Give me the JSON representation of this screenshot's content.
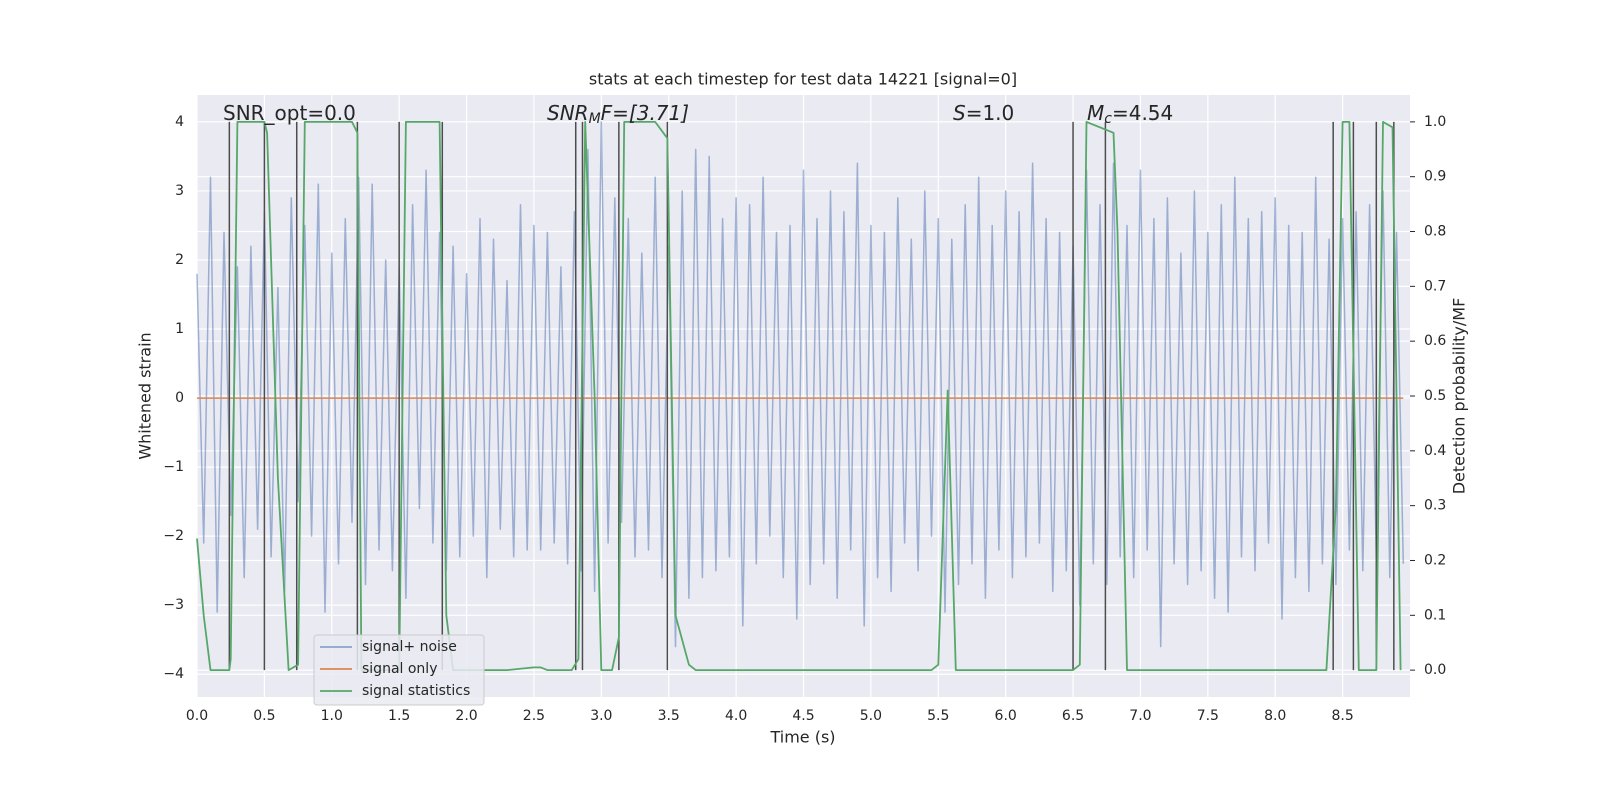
{
  "chart_data": {
    "type": "line",
    "title": "stats at each timestep for test data 14221 [signal=0]",
    "xlabel": "Time (s)",
    "ylabel": "Whitened strain",
    "y2label": "Detection probability/MF",
    "xlim": [
      0,
      9.0
    ],
    "ylim": [
      -4.33,
      4.39
    ],
    "y2lim": [
      -0.049,
      1.049
    ],
    "xticks": [
      {
        "value": 0,
        "label": "0.0"
      },
      0.5,
      {
        "value": 1,
        "label": "1.0"
      },
      1.5,
      {
        "value": 2,
        "label": "2.0"
      },
      2.5,
      {
        "value": 3,
        "label": "3.0"
      },
      3.5,
      {
        "value": 4,
        "label": "4.0"
      },
      4.5,
      {
        "value": 5,
        "label": "5.0"
      },
      5.5,
      {
        "value": 6,
        "label": "6.0"
      },
      6.5,
      {
        "value": 7,
        "label": "7.0"
      },
      7.5,
      {
        "value": 8,
        "label": "8.0"
      },
      8.5
    ],
    "yticks": [
      {
        "value": -4,
        "label": "−4"
      },
      {
        "value": -3,
        "label": "−3"
      },
      {
        "value": -2,
        "label": "−2"
      },
      {
        "value": -1,
        "label": "−1"
      },
      0,
      1,
      2,
      3,
      4
    ],
    "y2ticks": [
      {
        "value": 0,
        "label": "0.0"
      },
      0.1,
      0.2,
      0.3,
      0.4,
      0.5,
      0.6,
      0.7,
      0.8,
      0.9,
      {
        "value": 1,
        "label": "1.0"
      }
    ],
    "grid": true,
    "legend": "lower left",
    "annotations": [
      {
        "main": "SNR_opt=0.0"
      },
      {
        "main": "SNR",
        "sub": "M",
        "rest": "F=[3.71]"
      },
      {
        "main": "S",
        "rest": "=1.0"
      },
      {
        "main": "M",
        "sub": "c",
        "rest": "=4.54"
      }
    ],
    "vlines": {
      "color": "#4d4d4d",
      "range": [
        0,
        1
      ],
      "x": [
        0.24,
        0.5,
        0.74,
        1.19,
        1.5,
        1.82,
        2.81,
        2.86,
        3.13,
        3.49,
        6.5,
        6.74,
        8.43,
        8.58,
        8.75,
        8.88
      ]
    },
    "series": [
      {
        "name": "signal+ noise",
        "color": "#4c72b0",
        "x": [
          0,
          0.05,
          0.1,
          0.15,
          0.2,
          0.25,
          0.3,
          0.35,
          0.4,
          0.45,
          0.5,
          0.55,
          0.6,
          0.65,
          0.7,
          0.75,
          0.8,
          0.85,
          0.9,
          0.95,
          1,
          1.05,
          1.1,
          1.15,
          1.2,
          1.25,
          1.3,
          1.35,
          1.4,
          1.45,
          1.5,
          1.55,
          1.6,
          1.65,
          1.7,
          1.75,
          1.8,
          1.85,
          1.9,
          1.95,
          2,
          2.05,
          2.1,
          2.15,
          2.2,
          2.25,
          2.3,
          2.35,
          2.4,
          2.45,
          2.5,
          2.55,
          2.6,
          2.65,
          2.7,
          2.75,
          2.8,
          2.85,
          2.9,
          2.95,
          3,
          3.05,
          3.1,
          3.15,
          3.2,
          3.25,
          3.3,
          3.35,
          3.4,
          3.45,
          3.5,
          3.55,
          3.6,
          3.65,
          3.7,
          3.75,
          3.8,
          3.85,
          3.9,
          3.95,
          4,
          4.05,
          4.1,
          4.15,
          4.2,
          4.25,
          4.3,
          4.35,
          4.4,
          4.45,
          4.5,
          4.55,
          4.6,
          4.65,
          4.7,
          4.75,
          4.8,
          4.85,
          4.9,
          4.95,
          5,
          5.05,
          5.1,
          5.15,
          5.2,
          5.25,
          5.3,
          5.35,
          5.4,
          5.45,
          5.5,
          5.55,
          5.6,
          5.65,
          5.7,
          5.75,
          5.8,
          5.85,
          5.9,
          5.95,
          6,
          6.05,
          6.1,
          6.15,
          6.2,
          6.25,
          6.3,
          6.35,
          6.4,
          6.45,
          6.5,
          6.55,
          6.6,
          6.65,
          6.7,
          6.75,
          6.8,
          6.85,
          6.9,
          6.95,
          7,
          7.05,
          7.1,
          7.15,
          7.2,
          7.25,
          7.3,
          7.35,
          7.4,
          7.45,
          7.5,
          7.55,
          7.6,
          7.65,
          7.7,
          7.75,
          7.8,
          7.85,
          7.9,
          7.95,
          8,
          8.05,
          8.1,
          8.15,
          8.2,
          8.25,
          8.3,
          8.35,
          8.4,
          8.45,
          8.5,
          8.55,
          8.6,
          8.65,
          8.7,
          8.75,
          8.8,
          8.85,
          8.9,
          8.95
        ],
        "values": [
          1.8,
          -2.1,
          3.2,
          -3.1,
          2.4,
          -1.7,
          1.9,
          -2.6,
          2.2,
          -1.9,
          2.7,
          -2.3,
          1.6,
          -2.8,
          2.9,
          -1.5,
          2.5,
          -2.0,
          3.1,
          -3.1,
          2.1,
          -2.4,
          2.6,
          -1.8,
          3.2,
          -2.7,
          3.1,
          -2.2,
          2.0,
          -2.5,
          1.9,
          -2.9,
          2.8,
          -1.6,
          3.3,
          -2.1,
          2.4,
          -2.5,
          2.2,
          -2.3,
          1.8,
          -2.0,
          2.6,
          -2.6,
          2.3,
          -1.9,
          1.7,
          -2.3,
          2.8,
          -2.2,
          2.5,
          -2.2,
          2.4,
          -2.1,
          1.9,
          -2.4,
          2.7,
          -2.5,
          3.6,
          -2.8,
          4.0,
          -2.1,
          2.9,
          -1.8,
          2.6,
          -2.3,
          2.1,
          -2.2,
          3.2,
          -2.6,
          2.2,
          -3.6,
          3.0,
          -2.9,
          3.6,
          -2.6,
          3.5,
          -2.5,
          2.6,
          -2.3,
          2.9,
          -3.3,
          2.8,
          -2.4,
          3.2,
          -2.0,
          2.4,
          -2.6,
          2.5,
          -3.2,
          3.3,
          -2.7,
          2.6,
          -2.4,
          3.0,
          -2.9,
          2.7,
          -2.2,
          3.4,
          -3.3,
          2.5,
          -2.6,
          2.4,
          -2.8,
          2.9,
          -2.1,
          2.3,
          -2.5,
          3.0,
          -2.0,
          2.6,
          -3.1,
          2.3,
          -2.7,
          2.8,
          -2.4,
          3.2,
          -2.9,
          2.5,
          -2.2,
          3.0,
          -2.6,
          2.7,
          -2.3,
          3.4,
          -2.1,
          2.6,
          -2.8,
          2.4,
          -2.5,
          2.2,
          -3.0,
          3.3,
          -2.4,
          2.8,
          -2.7,
          3.4,
          -2.3,
          2.5,
          -2.6,
          3.3,
          -2.2,
          2.6,
          -3.6,
          2.9,
          -2.4,
          2.1,
          -2.7,
          3.0,
          -2.5,
          2.4,
          -2.9,
          2.8,
          -3.1,
          3.2,
          -2.3,
          2.6,
          -2.5,
          2.7,
          -2.1,
          2.9,
          -3.2,
          2.5,
          -2.6,
          2.4,
          -2.8,
          3.2,
          -2.4,
          2.3,
          -2.7,
          2.6,
          -2.2,
          2.7,
          -2.5,
          2.8,
          -2.3,
          3.0,
          -2.6,
          2.4,
          -2.4
        ]
      },
      {
        "name": "signal only",
        "color": "#dd8452",
        "x": [
          0,
          8.95
        ],
        "values": [
          0,
          0
        ]
      },
      {
        "name": "signal statistics",
        "color": "#55a868",
        "axis": "y2",
        "x": [
          0,
          0.05,
          0.1,
          0.24,
          0.25,
          0.3,
          0.5,
          0.52,
          0.6,
          0.68,
          0.75,
          0.8,
          1.0,
          1.15,
          1.19,
          1.22,
          1.5,
          1.55,
          1.8,
          1.85,
          1.9,
          2.3,
          2.5,
          2.55,
          2.6,
          2.78,
          2.83,
          2.88,
          2.95,
          3.0,
          3.08,
          3.13,
          3.17,
          3.4,
          3.49,
          3.55,
          3.65,
          3.7,
          5.45,
          5.5,
          5.57,
          5.63,
          6.5,
          6.55,
          6.6,
          6.8,
          6.83,
          6.9,
          8.38,
          8.45,
          8.5,
          8.55,
          8.62,
          8.75,
          8.8,
          8.87,
          8.93
        ],
        "values": [
          0.24,
          0.1,
          0,
          0,
          0.02,
          1,
          1,
          0.98,
          0.35,
          0,
          0.01,
          1,
          1,
          1,
          0.98,
          0,
          0,
          1,
          1,
          0.1,
          0,
          0,
          0.005,
          0.005,
          0,
          0,
          0.02,
          1,
          0.5,
          0,
          0,
          0.06,
          1,
          1,
          0.97,
          0.1,
          0.01,
          0,
          0,
          0.01,
          0.51,
          0,
          0,
          0.01,
          1,
          0.98,
          0.8,
          0,
          0,
          0.3,
          1,
          1,
          0,
          0,
          1,
          0.99,
          0
        ]
      }
    ]
  }
}
